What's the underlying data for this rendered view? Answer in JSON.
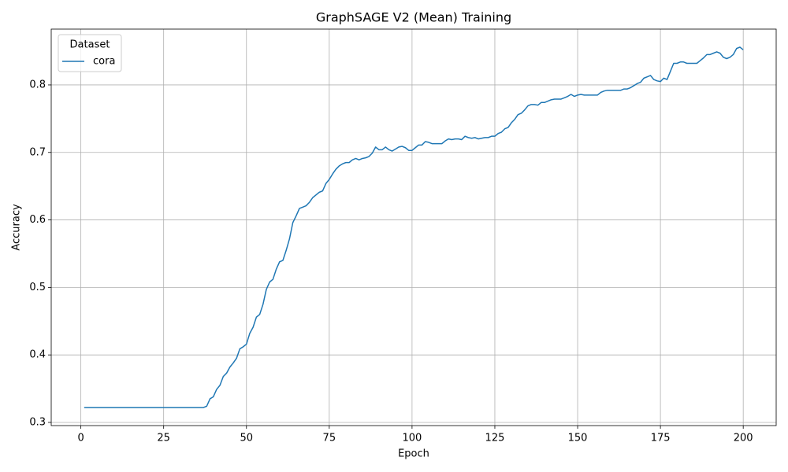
{
  "chart_data": {
    "type": "line",
    "title": "GraphSAGE V2 (Mean) Training",
    "xlabel": "Epoch",
    "ylabel": "Accuracy",
    "x": [
      1,
      2,
      3,
      4,
      5,
      6,
      7,
      8,
      9,
      10,
      11,
      12,
      13,
      14,
      15,
      16,
      17,
      18,
      19,
      20,
      21,
      22,
      23,
      24,
      25,
      26,
      27,
      28,
      29,
      30,
      31,
      32,
      33,
      34,
      35,
      36,
      37,
      38,
      39,
      40,
      41,
      42,
      43,
      44,
      45,
      46,
      47,
      48,
      49,
      50,
      51,
      52,
      53,
      54,
      55,
      56,
      57,
      58,
      59,
      60,
      61,
      62,
      63,
      64,
      65,
      66,
      67,
      68,
      69,
      70,
      71,
      72,
      73,
      74,
      75,
      76,
      77,
      78,
      79,
      80,
      81,
      82,
      83,
      84,
      85,
      86,
      87,
      88,
      89,
      90,
      91,
      92,
      93,
      94,
      95,
      96,
      97,
      98,
      99,
      100,
      101,
      102,
      103,
      104,
      105,
      106,
      107,
      108,
      109,
      110,
      111,
      112,
      113,
      114,
      115,
      116,
      117,
      118,
      119,
      120,
      121,
      122,
      123,
      124,
      125,
      126,
      127,
      128,
      129,
      130,
      131,
      132,
      133,
      134,
      135,
      136,
      137,
      138,
      139,
      140,
      141,
      142,
      143,
      144,
      145,
      146,
      147,
      148,
      149,
      150,
      151,
      152,
      153,
      154,
      155,
      156,
      157,
      158,
      159,
      160,
      161,
      162,
      163,
      164,
      165,
      166,
      167,
      168,
      169,
      170,
      171,
      172,
      173,
      174,
      175,
      176,
      177,
      178,
      179,
      180,
      181,
      182,
      183,
      184,
      185,
      186,
      187,
      188,
      189,
      190,
      191,
      192,
      193,
      194,
      195,
      196,
      197,
      198,
      199,
      200
    ],
    "series": [
      {
        "name": "cora",
        "color": "#1f77b4",
        "values": [
          0.322,
          0.322,
          0.322,
          0.322,
          0.322,
          0.322,
          0.322,
          0.322,
          0.322,
          0.322,
          0.322,
          0.322,
          0.322,
          0.322,
          0.322,
          0.322,
          0.322,
          0.322,
          0.322,
          0.322,
          0.322,
          0.322,
          0.322,
          0.322,
          0.322,
          0.322,
          0.322,
          0.322,
          0.322,
          0.322,
          0.322,
          0.322,
          0.322,
          0.322,
          0.322,
          0.322,
          0.322,
          0.324,
          0.335,
          0.338,
          0.349,
          0.355,
          0.368,
          0.373,
          0.382,
          0.388,
          0.395,
          0.409,
          0.412,
          0.416,
          0.432,
          0.441,
          0.456,
          0.46,
          0.475,
          0.497,
          0.508,
          0.512,
          0.527,
          0.538,
          0.54,
          0.555,
          0.572,
          0.596,
          0.606,
          0.617,
          0.619,
          0.621,
          0.626,
          0.633,
          0.637,
          0.641,
          0.643,
          0.654,
          0.66,
          0.668,
          0.675,
          0.68,
          0.683,
          0.685,
          0.685,
          0.689,
          0.691,
          0.689,
          0.691,
          0.692,
          0.694,
          0.699,
          0.708,
          0.704,
          0.704,
          0.708,
          0.704,
          0.702,
          0.705,
          0.708,
          0.709,
          0.707,
          0.703,
          0.703,
          0.707,
          0.711,
          0.711,
          0.716,
          0.715,
          0.713,
          0.713,
          0.713,
          0.713,
          0.717,
          0.72,
          0.719,
          0.72,
          0.72,
          0.719,
          0.724,
          0.722,
          0.721,
          0.722,
          0.72,
          0.721,
          0.722,
          0.722,
          0.724,
          0.724,
          0.728,
          0.73,
          0.735,
          0.737,
          0.744,
          0.749,
          0.756,
          0.758,
          0.763,
          0.769,
          0.771,
          0.771,
          0.77,
          0.774,
          0.774,
          0.776,
          0.778,
          0.779,
          0.779,
          0.779,
          0.781,
          0.783,
          0.786,
          0.783,
          0.785,
          0.786,
          0.785,
          0.785,
          0.785,
          0.785,
          0.785,
          0.789,
          0.791,
          0.792,
          0.792,
          0.792,
          0.792,
          0.792,
          0.794,
          0.794,
          0.796,
          0.799,
          0.802,
          0.804,
          0.81,
          0.812,
          0.814,
          0.808,
          0.806,
          0.805,
          0.81,
          0.808,
          0.82,
          0.832,
          0.832,
          0.834,
          0.834,
          0.832,
          0.832,
          0.832,
          0.832,
          0.836,
          0.84,
          0.845,
          0.845,
          0.847,
          0.849,
          0.847,
          0.841,
          0.839,
          0.841,
          0.845,
          0.854,
          0.856,
          0.852
        ]
      }
    ],
    "xlim": [
      -8.95,
      209.95
    ],
    "ylim": [
      0.2953,
      0.8827
    ],
    "xticks": [
      0,
      25,
      50,
      75,
      100,
      125,
      150,
      175,
      200
    ],
    "yticks": [
      0.3,
      0.4,
      0.5,
      0.6,
      0.7,
      0.8
    ],
    "grid": true,
    "legend": {
      "title": "Dataset",
      "loc": "upper left"
    }
  }
}
